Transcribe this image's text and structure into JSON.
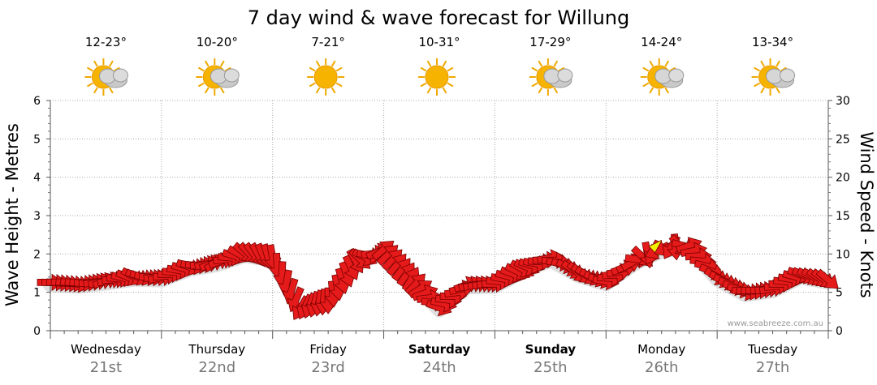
{
  "chart_data": {
    "type": "line",
    "title": "7 day wind & wave forecast for Willung",
    "ylabel_left": "Wave Height - Metres",
    "ylabel_right": "Wind Speed - Knots",
    "left_ticks": [
      "0",
      "1",
      "2",
      "3",
      "4",
      "5",
      "6"
    ],
    "right_ticks": [
      "0",
      "5",
      "10",
      "15",
      "20",
      "25",
      "30"
    ],
    "ylim_left": [
      0,
      6
    ],
    "ylim_right": [
      0,
      30
    ],
    "grid": true,
    "days": [
      {
        "name": "Wednesday",
        "date": "21st",
        "temp": "12-23°",
        "weather": "sun-cloud-icon",
        "bold": false
      },
      {
        "name": "Thursday",
        "date": "22nd",
        "temp": "10-20°",
        "weather": "sun-cloud-icon",
        "bold": false
      },
      {
        "name": "Friday",
        "date": "23rd",
        "temp": "7-21°",
        "weather": "sun-icon",
        "bold": false
      },
      {
        "name": "Saturday",
        "date": "24th",
        "temp": "10-31°",
        "weather": "sun-icon",
        "bold": true
      },
      {
        "name": "Sunday",
        "date": "25th",
        "temp": "17-29°",
        "weather": "sun-cloud-icon",
        "bold": true
      },
      {
        "name": "Monday",
        "date": "26th",
        "temp": "14-24°",
        "weather": "sun-cloud-icon",
        "bold": false
      },
      {
        "name": "Tuesday",
        "date": "27th",
        "temp": "13-34°",
        "weather": "sun-cloud-icon",
        "bold": false
      }
    ],
    "wind_series": {
      "name": "Wind",
      "x_day": [
        0.0,
        0.25,
        0.5,
        0.75,
        1.0,
        1.25,
        1.5,
        1.75,
        2.0,
        2.25,
        2.5,
        2.75,
        3.0,
        3.25,
        3.5,
        3.75,
        4.0,
        4.25,
        4.5,
        4.75,
        5.0,
        5.25,
        5.5,
        5.75,
        6.0,
        6.25,
        6.5,
        6.75,
        7.0
      ],
      "knots": [
        6.3,
        6.1,
        6.5,
        7.0,
        6.9,
        8.3,
        8.9,
        10.1,
        9.5,
        2.9,
        3.9,
        9.0,
        10.6,
        6.8,
        3.0,
        6.0,
        6.1,
        8.0,
        9.5,
        7.5,
        6.4,
        9.0,
        10.7,
        11.1,
        7.0,
        5.0,
        5.5,
        7.3,
        6.6
      ],
      "colors": [
        "#e51a1a",
        "#e51a1a",
        "#e51a1a",
        "#e51a1a",
        "#e51a1a",
        "#e51a1a",
        "#e51a1a",
        "#e51a1a",
        "#e51a1a",
        "#e51a1a",
        "#e51a1a",
        "#e51a1a",
        "#e51a1a",
        "#e51a1a",
        "#e51a1a",
        "#e51a1a",
        "#e51a1a",
        "#e51a1a",
        "#e51a1a",
        "#e51a1a",
        "#e51a1a",
        "#e51a1a",
        "#f0f000",
        "#e51a1a",
        "#e51a1a",
        "#e51a1a",
        "#e51a1a",
        "#e51a1a",
        "#e51a1a"
      ],
      "dir_deg": [
        0,
        10,
        -20,
        30,
        -10,
        20,
        -30,
        40,
        80,
        120,
        90,
        60,
        -40,
        -60,
        20,
        -20,
        0,
        30,
        -10,
        45,
        10,
        -30,
        190,
        -20,
        30,
        10,
        -10,
        20,
        40
      ]
    },
    "credit": "www.seabreeze.com.au"
  }
}
